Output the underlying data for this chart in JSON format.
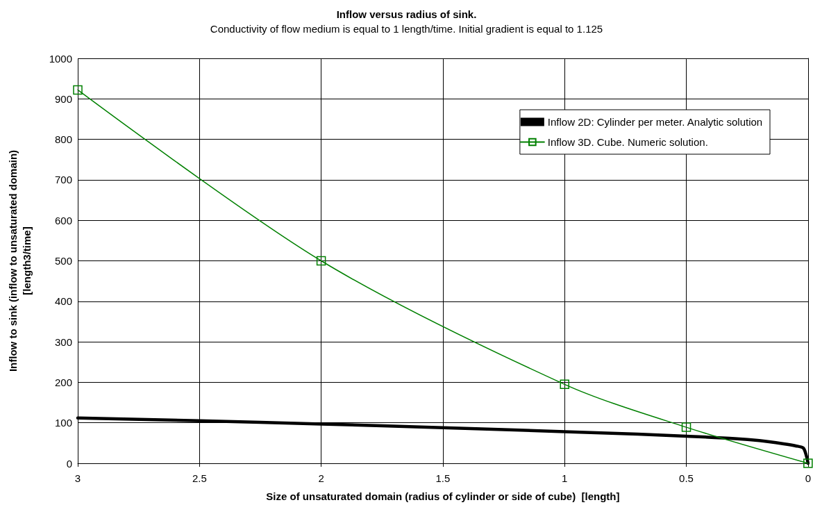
{
  "chart_data": {
    "type": "line",
    "title": "Inflow versus radius of sink.",
    "subtitle": "Conductivity of flow medium is equal to 1 length/time. Initial gradient is equal to 1.125",
    "xlabel": "Size of unsaturated domain (radius of cylinder or side of cube)  [length]",
    "ylabel": "Inflow to sink (inflow to unsaturated domain)\n[length3/time]",
    "xlim": [
      3,
      0
    ],
    "xticks": [
      3,
      2.5,
      2,
      1.5,
      1,
      0.5,
      0
    ],
    "ylim": [
      0,
      1000
    ],
    "yticks": [
      0,
      100,
      200,
      300,
      400,
      500,
      600,
      700,
      800,
      900,
      1000
    ],
    "grid": true,
    "legend": "top right",
    "line_style": "solid",
    "series": [
      {
        "name": "Inflow 2D: Cylinder per meter. Analytic solution",
        "color": "#000000",
        "marker": "none",
        "x": [
          3,
          2.5,
          2,
          1.5,
          1,
          0.7,
          0.5,
          0.3,
          0.2,
          0.1,
          0.05,
          0.02,
          0.01,
          0
        ],
        "values": [
          112,
          105,
          97,
          88,
          78,
          72,
          67,
          61,
          56,
          48,
          43,
          38,
          25,
          0
        ]
      },
      {
        "name": "Inflow 3D. Cube. Numeric solution.",
        "color": "#008000",
        "marker": "square",
        "x": [
          3,
          2,
          1,
          0.5,
          0
        ],
        "values": [
          922,
          500,
          195,
          89,
          0
        ]
      }
    ]
  }
}
